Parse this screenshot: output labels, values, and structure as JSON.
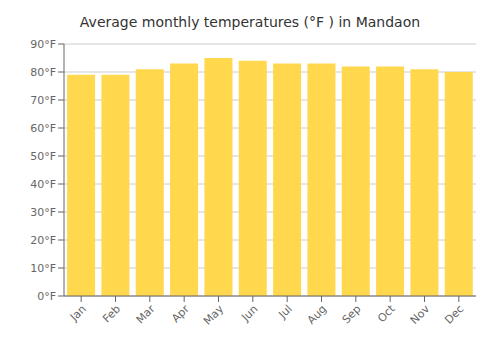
{
  "chart_data": {
    "type": "bar",
    "title": "Average monthly temperatures (°F ) in Mandaon",
    "categories": [
      "Jan",
      "Feb",
      "Mar",
      "Apr",
      "May",
      "Jun",
      "Jul",
      "Aug",
      "Sep",
      "Oct",
      "Nov",
      "Dec"
    ],
    "values": [
      79,
      79,
      81,
      83,
      85,
      84,
      83,
      83,
      82,
      82,
      81,
      80
    ],
    "color": "#FFD84D",
    "ylim": [
      0,
      90
    ],
    "yticks": [
      {
        "value": 0,
        "label": "0°F"
      },
      {
        "value": 10,
        "label": "10°F"
      },
      {
        "value": 20,
        "label": "20°F"
      },
      {
        "value": 30,
        "label": "30°F"
      },
      {
        "value": 40,
        "label": "40°F"
      },
      {
        "value": 50,
        "label": "50°F"
      },
      {
        "value": 60,
        "label": "60°F"
      },
      {
        "value": 70,
        "label": "70°F"
      },
      {
        "value": 80,
        "label": "80°F"
      },
      {
        "value": 90,
        "label": "90°F"
      }
    ],
    "grid": true
  }
}
